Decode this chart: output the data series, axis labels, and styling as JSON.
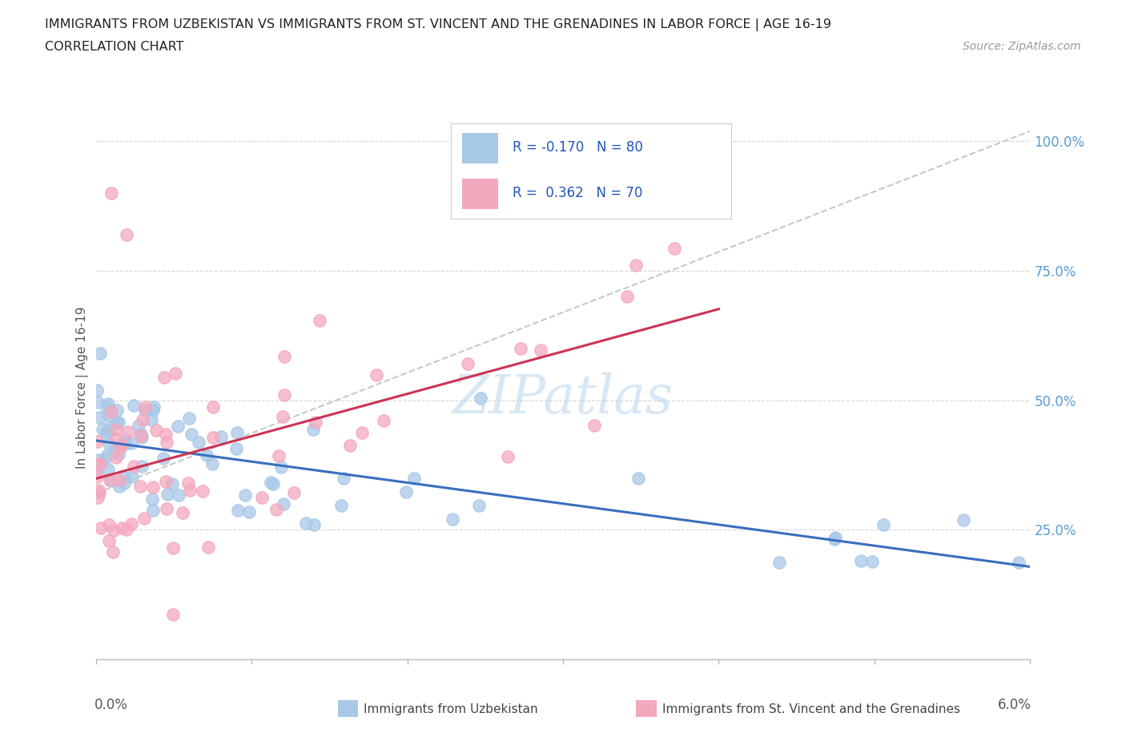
{
  "title_line1": "IMMIGRANTS FROM UZBEKISTAN VS IMMIGRANTS FROM ST. VINCENT AND THE GRENADINES IN LABOR FORCE | AGE 16-19",
  "title_line2": "CORRELATION CHART",
  "source_text": "Source: ZipAtlas.com",
  "ylabel": "In Labor Force | Age 16-19",
  "y_ticks_right": [
    "100.0%",
    "75.0%",
    "50.0%",
    "25.0%"
  ],
  "y_ticks_right_vals": [
    1.0,
    0.75,
    0.5,
    0.25
  ],
  "x_range": [
    0.0,
    0.06
  ],
  "y_range": [
    0.0,
    1.05
  ],
  "R_uzbekistan": -0.17,
  "N_uzbekistan": 80,
  "R_vincent": 0.362,
  "N_vincent": 70,
  "color_uzbekistan": "#a8c8e8",
  "color_uzbekistan_line": "#3a6fbe",
  "color_vincent": "#f4a8be",
  "color_vincent_line": "#cc3355",
  "color_trend_dashed": "#c8c8c8",
  "background_color": "#ffffff"
}
